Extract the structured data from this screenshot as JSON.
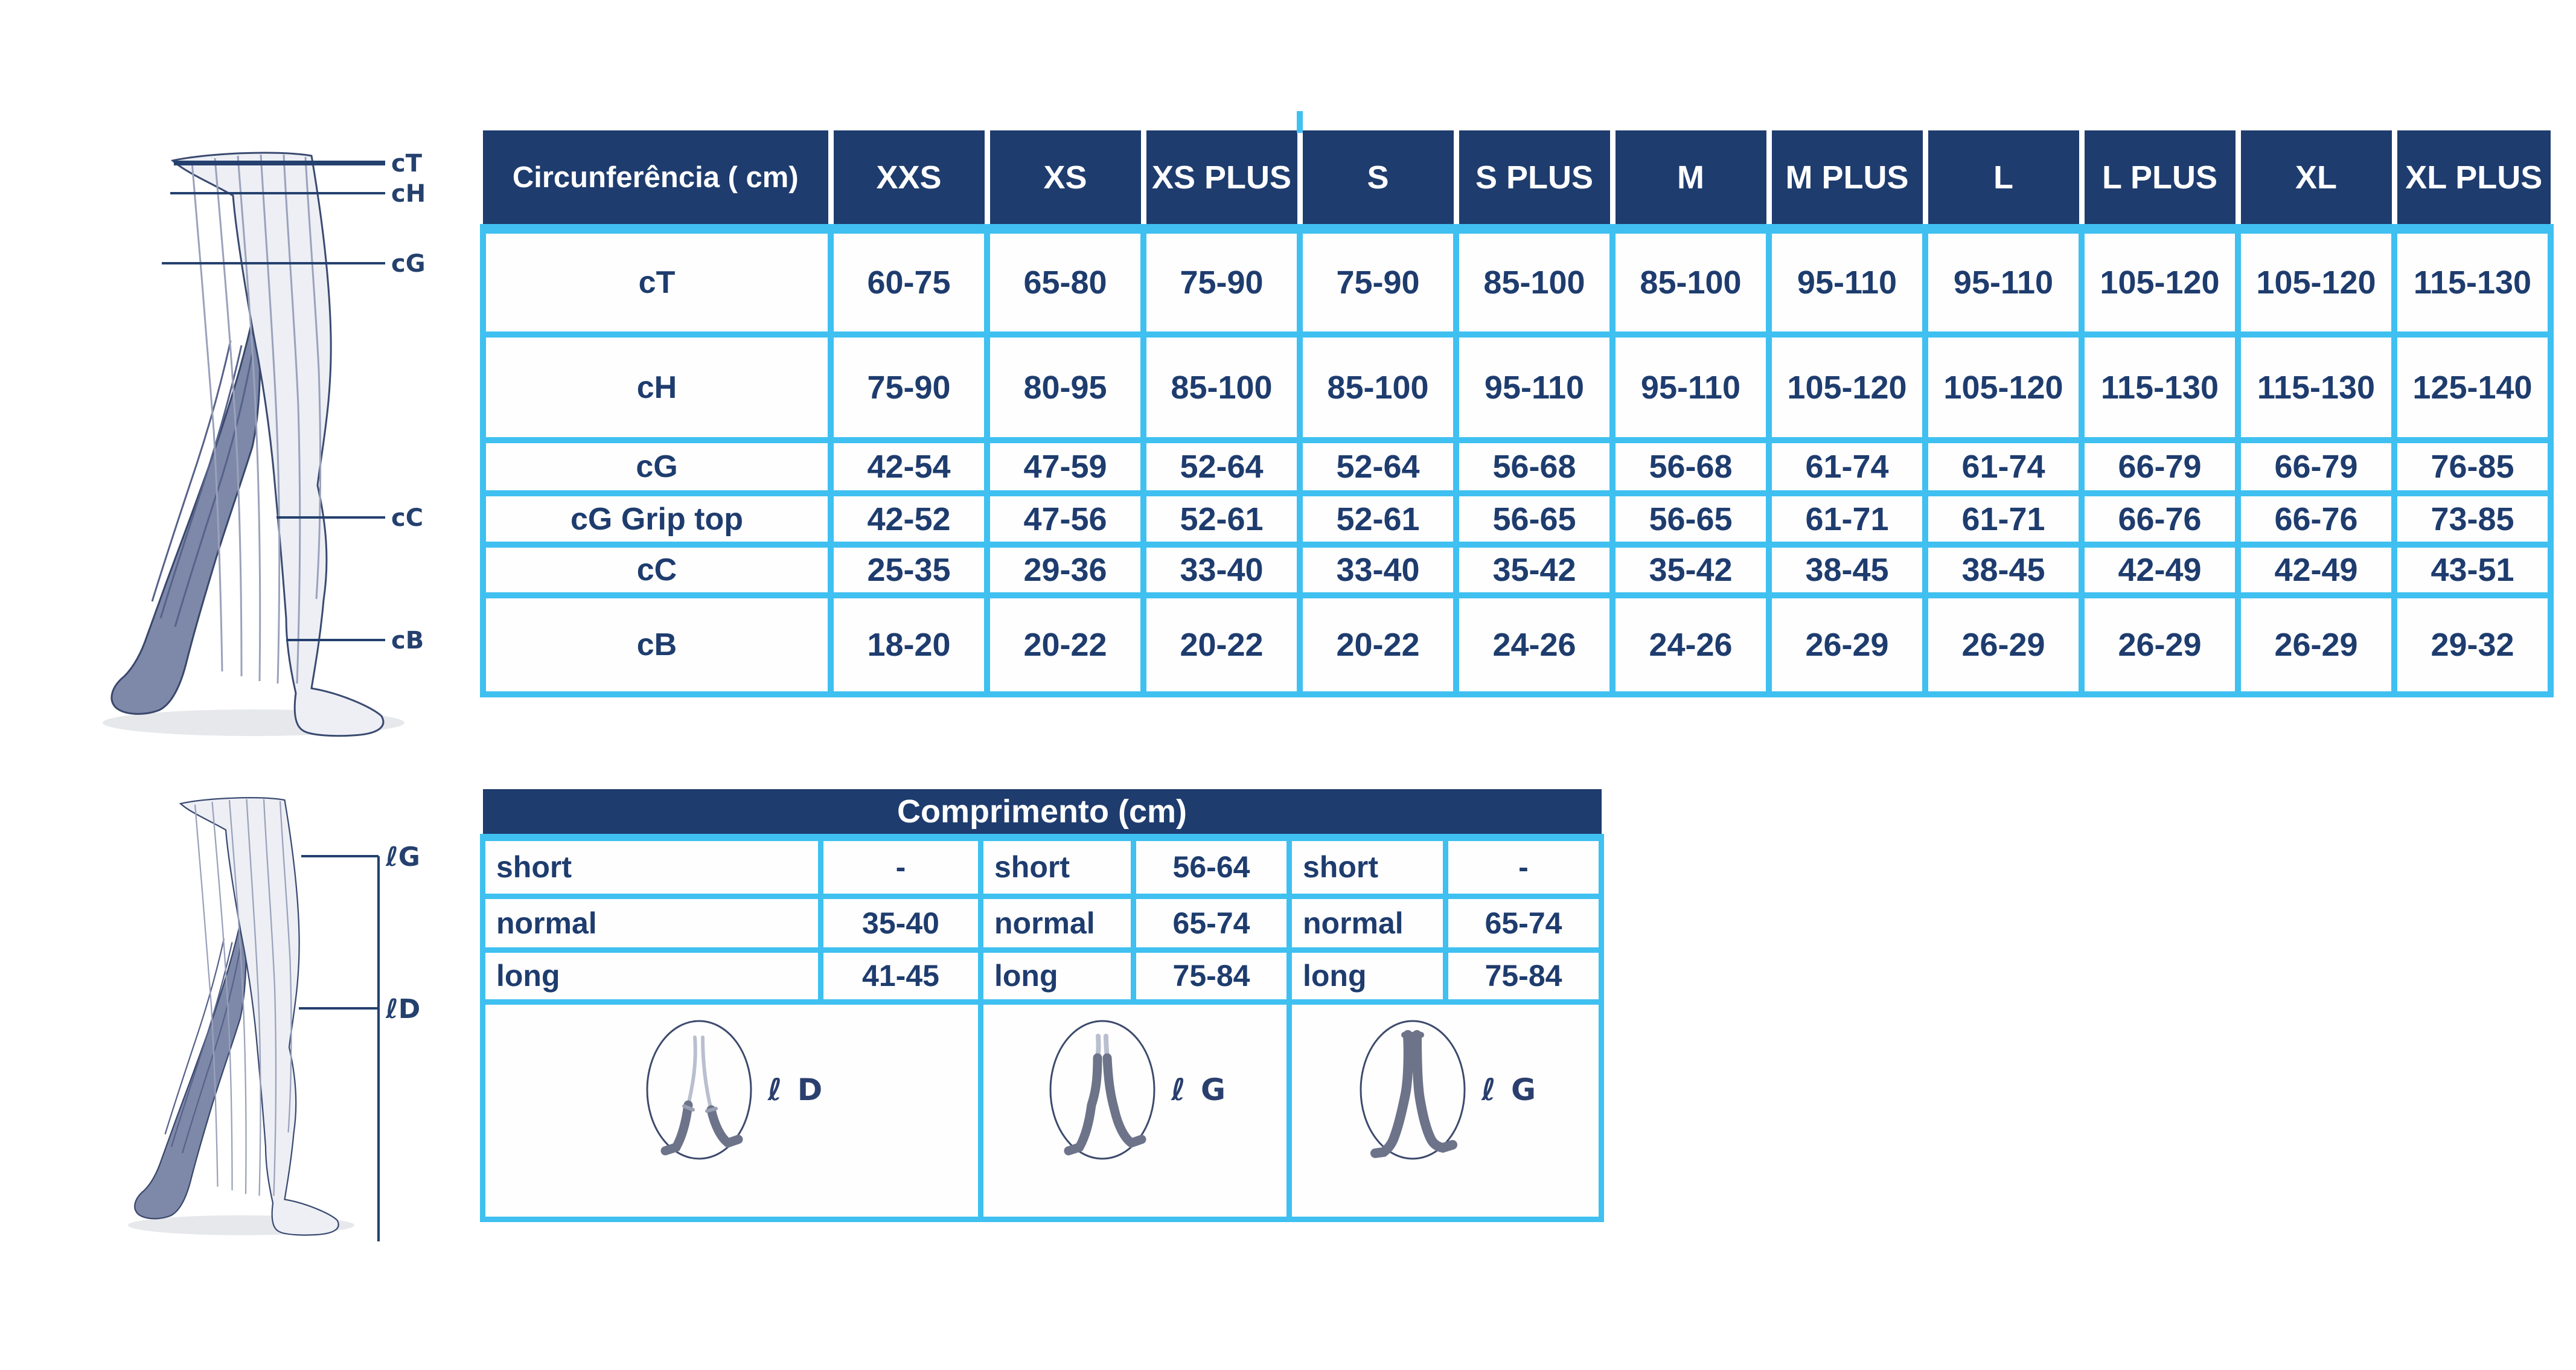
{
  "colors": {
    "navy": "#1e3c6e",
    "cyan": "#3fc0f0",
    "diagram_line": "#24406e",
    "front_leg": "#edeff5",
    "back_leg": "#7e89a9"
  },
  "size_table": {
    "header": [
      "Circunferência ( cm)",
      "XXS",
      "XS",
      "XS PLUS",
      "S",
      "S PLUS",
      "M",
      "M PLUS",
      "L",
      "L PLUS",
      "XL",
      "XL PLUS"
    ],
    "rows": [
      {
        "label": "cT",
        "values": [
          "60-75",
          "65-80",
          "75-90",
          "75-90",
          "85-100",
          "85-100",
          "95-110",
          "95-110",
          "105-120",
          "105-120",
          "115-130"
        ]
      },
      {
        "label": "cH",
        "values": [
          "75-90",
          "80-95",
          "85-100",
          "85-100",
          "95-110",
          "95-110",
          "105-120",
          "105-120",
          "115-130",
          "115-130",
          "125-140"
        ]
      },
      {
        "label": "cG",
        "values": [
          "42-54",
          "47-59",
          "52-64",
          "52-64",
          "56-68",
          "56-68",
          "61-74",
          "61-74",
          "66-79",
          "66-79",
          "76-85"
        ]
      },
      {
        "label": "cG Grip top",
        "values": [
          "42-52",
          "47-56",
          "52-61",
          "52-61",
          "56-65",
          "56-65",
          "61-71",
          "61-71",
          "66-76",
          "66-76",
          "73-85"
        ]
      },
      {
        "label": "cC",
        "values": [
          "25-35",
          "29-36",
          "33-40",
          "33-40",
          "35-42",
          "35-42",
          "38-45",
          "38-45",
          "42-49",
          "42-49",
          "43-51"
        ]
      },
      {
        "label": "cB",
        "values": [
          "18-20",
          "20-22",
          "20-22",
          "20-22",
          "24-26",
          "24-26",
          "26-29",
          "26-29",
          "26-29",
          "26-29",
          "29-32"
        ]
      }
    ]
  },
  "length_table": {
    "title": "Comprimento (cm)",
    "rows": [
      [
        {
          "label": "short",
          "value": "-"
        },
        {
          "label": "short",
          "value": "56-64"
        },
        {
          "label": "short",
          "value": "-"
        }
      ],
      [
        {
          "label": "normal",
          "value": "35-40"
        },
        {
          "label": "normal",
          "value": "65-74"
        },
        {
          "label": "normal",
          "value": "65-74"
        }
      ],
      [
        {
          "label": "long",
          "value": "41-45"
        },
        {
          "label": "long",
          "value": "75-84"
        },
        {
          "label": "long",
          "value": "75-84"
        }
      ]
    ],
    "icons": [
      {
        "kind": "knee-high-sock",
        "label": "ℓ D"
      },
      {
        "kind": "thigh-high-stocking",
        "label": "ℓ G"
      },
      {
        "kind": "pantyhose",
        "label": "ℓ G"
      }
    ]
  },
  "leg_diagrams": {
    "circumference_labels": [
      "cT",
      "cH",
      "cG",
      "cC",
      "cB"
    ],
    "length_labels": [
      "ℓG",
      "ℓD"
    ]
  }
}
